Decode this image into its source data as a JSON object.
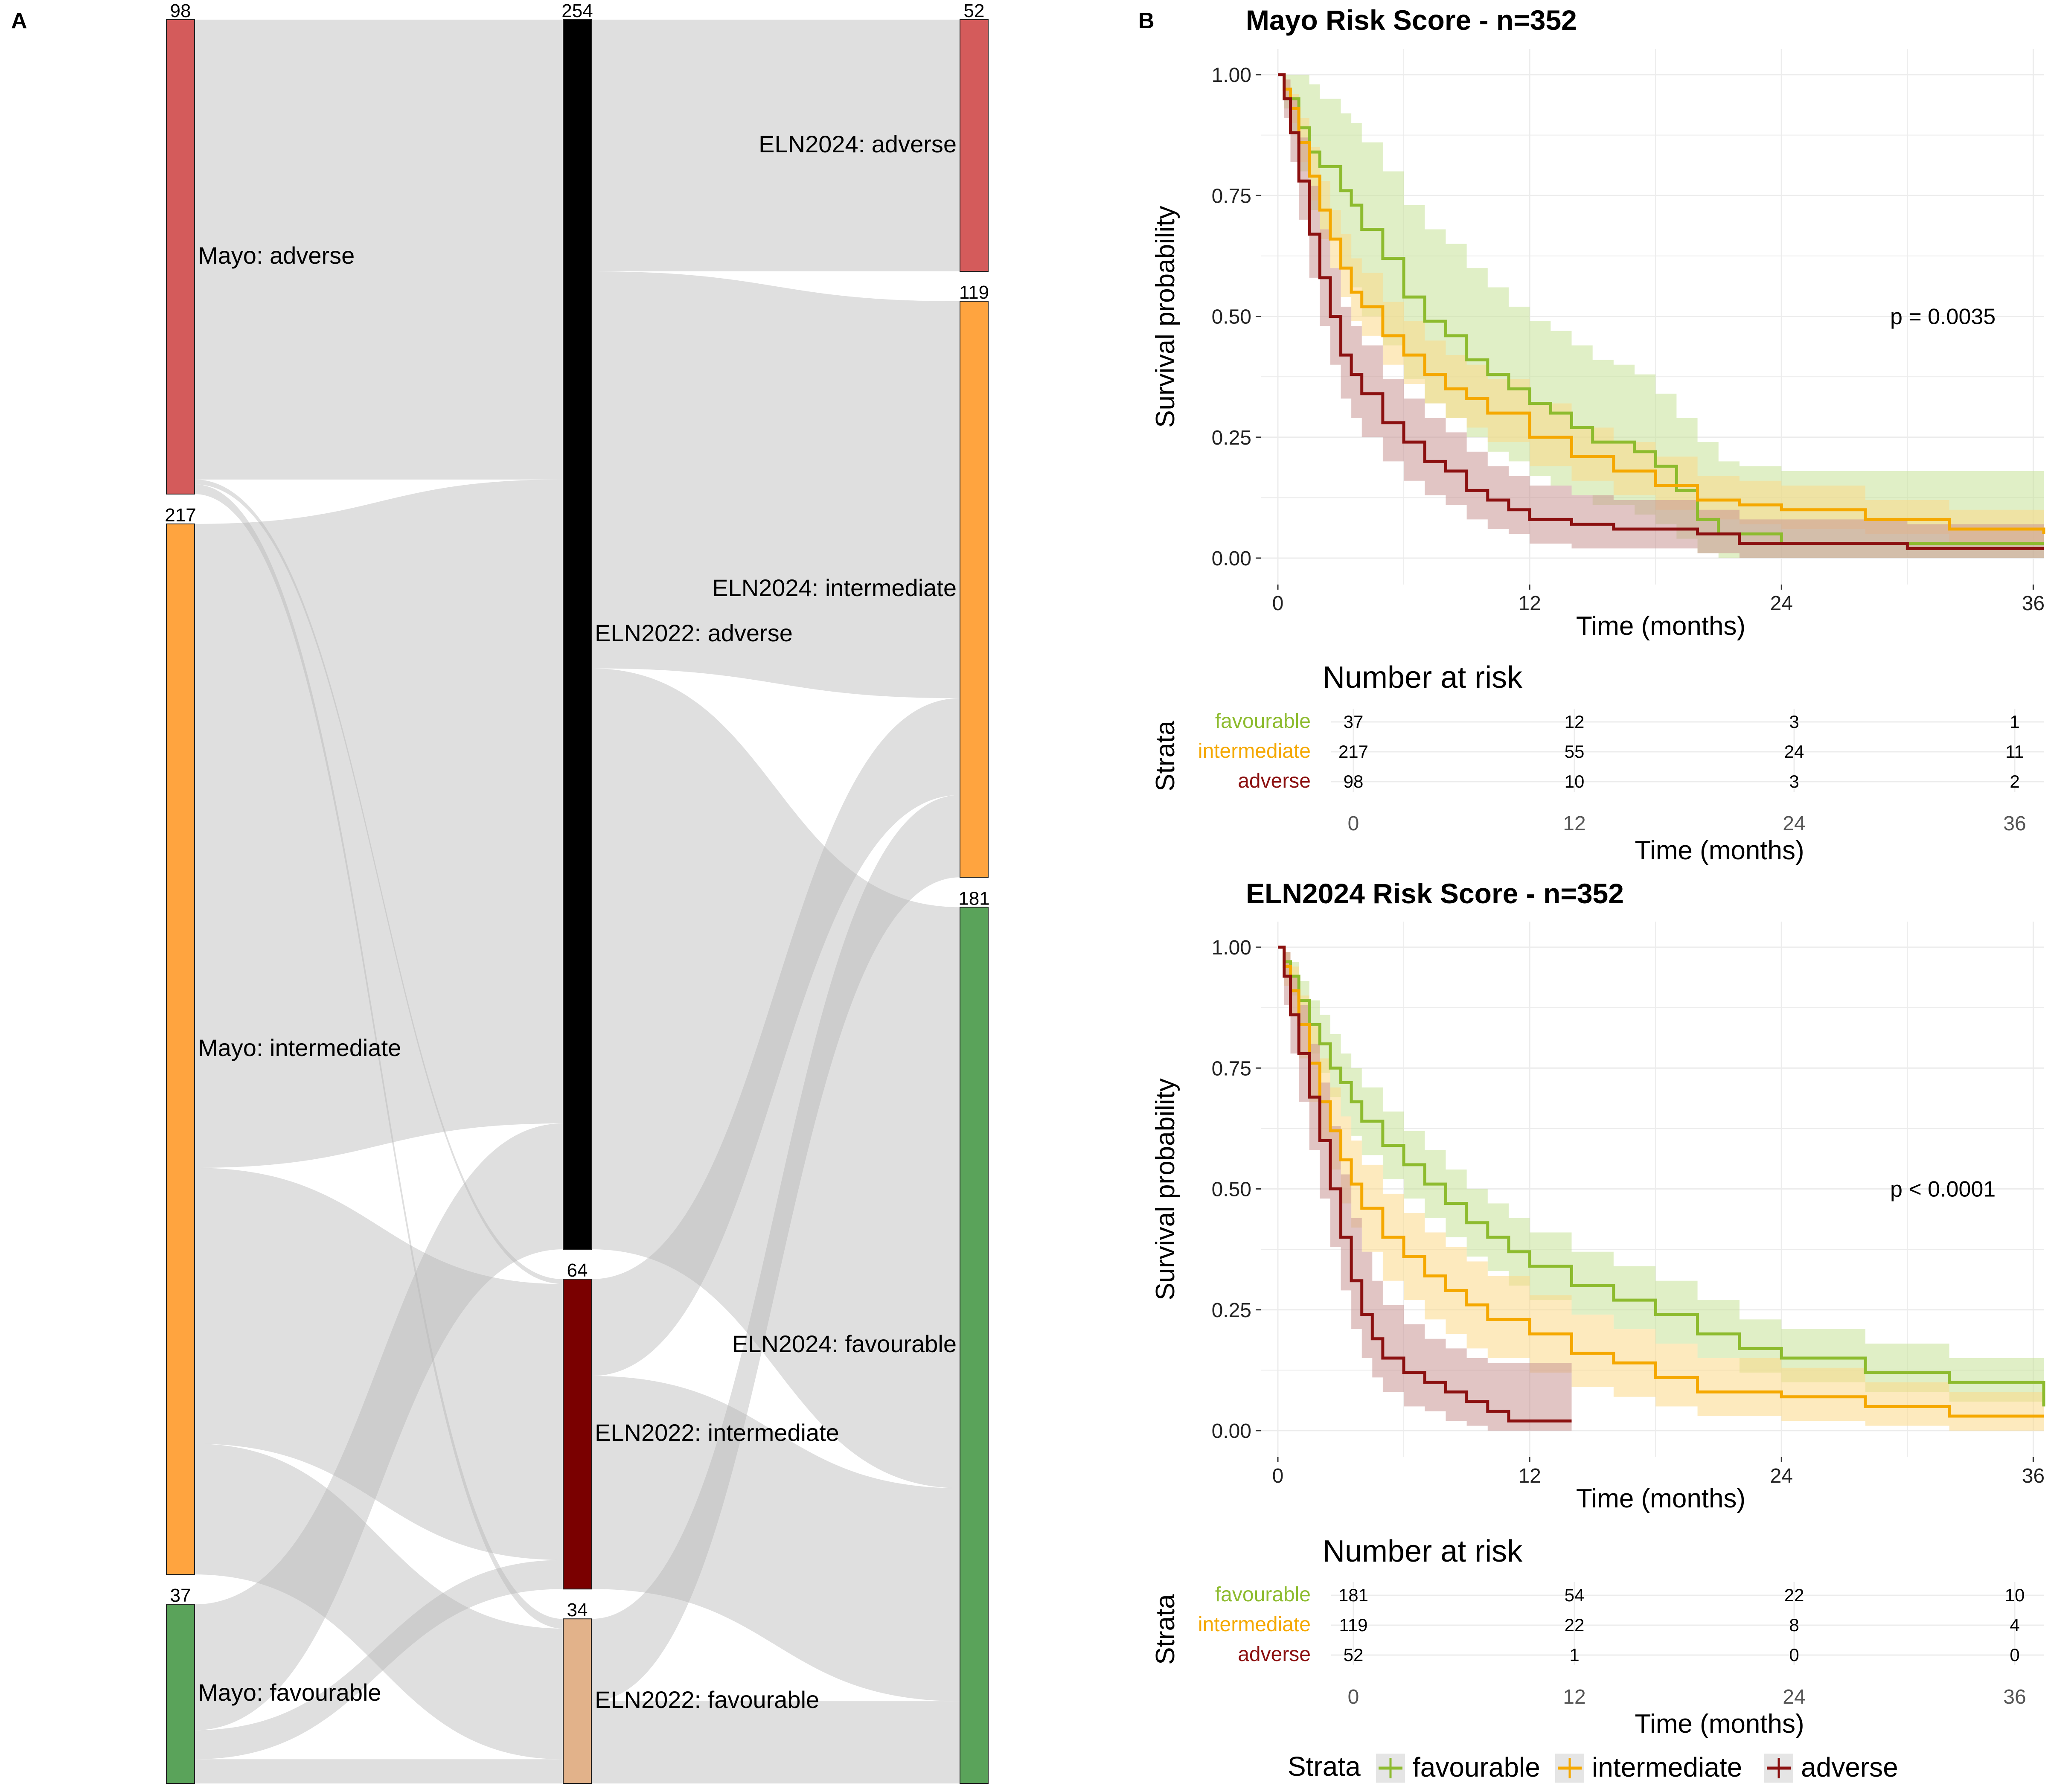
{
  "panels": {
    "a_label": "A",
    "b_label": "B"
  },
  "chart_data": [
    {
      "type": "sankey",
      "stages": [
        {
          "nodes": [
            {
              "label": "Mayo: adverse",
              "count": "98",
              "value": 98,
              "color": "#d45b5b"
            },
            {
              "label": "Mayo: intermediate",
              "count": "217",
              "value": 217,
              "color": "#ffa43f"
            },
            {
              "label": "Mayo: favourable",
              "count": "37",
              "value": 37,
              "color": "#5aa35a"
            }
          ]
        },
        {
          "nodes": [
            {
              "label": "ELN2022: adverse",
              "count": "254",
              "value": 254,
              "color": "#000000"
            },
            {
              "label": "ELN2022: intermediate",
              "count": "64",
              "value": 64,
              "color": "#7a0000"
            },
            {
              "label": "ELN2022: favourable",
              "count": "34",
              "value": 34,
              "color": "#e2b28a"
            }
          ]
        },
        {
          "nodes": [
            {
              "label": "ELN2024: adverse",
              "count": "52",
              "value": 52,
              "color": "#d45b5b"
            },
            {
              "label": "ELN2024: intermediate",
              "count": "119",
              "value": 119,
              "color": "#ffa43f"
            },
            {
              "label": "ELN2024: favourable",
              "count": "181",
              "value": 181,
              "color": "#5aa35a"
            }
          ]
        }
      ],
      "links1": [
        [
          0,
          0,
          95
        ],
        [
          0,
          1,
          1
        ],
        [
          0,
          2,
          2
        ],
        [
          1,
          0,
          133
        ],
        [
          1,
          1,
          57
        ],
        [
          1,
          2,
          27
        ],
        [
          2,
          0,
          26
        ],
        [
          2,
          1,
          6
        ],
        [
          2,
          2,
          5
        ]
      ],
      "links2": [
        [
          0,
          0,
          52
        ],
        [
          0,
          1,
          82
        ],
        [
          0,
          2,
          120
        ],
        [
          1,
          1,
          20
        ],
        [
          1,
          2,
          44
        ],
        [
          2,
          1,
          17
        ],
        [
          2,
          2,
          17
        ]
      ]
    },
    {
      "type": "line",
      "title": "Mayo Risk Score - n=352",
      "xlabel": "Time (months)",
      "ylabel": "Survival probability",
      "xlim": [
        0,
        36.5
      ],
      "ylim": [
        0,
        1
      ],
      "xticks": [
        "0",
        "12",
        "24",
        "36"
      ],
      "yticks": [
        "0.00",
        "0.25",
        "0.50",
        "0.75",
        "1.00"
      ],
      "pvalue": "p = 0.0035",
      "series": [
        {
          "name": "favourable",
          "color": "#8dbb2e",
          "band": "#c6e297",
          "x": [
            0,
            0.3,
            0.6,
            1,
            1.5,
            2,
            2.5,
            3,
            3.5,
            4,
            5,
            6,
            7,
            8,
            9,
            10,
            11,
            12,
            13,
            14,
            15,
            16,
            17,
            18,
            19,
            20,
            21,
            22,
            24,
            30,
            36.5
          ],
          "y": [
            1.0,
            0.97,
            0.95,
            0.89,
            0.84,
            0.81,
            0.81,
            0.76,
            0.73,
            0.68,
            0.62,
            0.54,
            0.49,
            0.46,
            0.41,
            0.38,
            0.35,
            0.32,
            0.3,
            0.27,
            0.24,
            0.24,
            0.22,
            0.19,
            0.14,
            0.08,
            0.05,
            0.05,
            0.03,
            0.03,
            0.03
          ],
          "lower": [
            1.0,
            0.93,
            0.88,
            0.8,
            0.72,
            0.68,
            0.66,
            0.6,
            0.56,
            0.5,
            0.44,
            0.37,
            0.32,
            0.29,
            0.25,
            0.22,
            0.2,
            0.17,
            0.15,
            0.13,
            0.11,
            0.11,
            0.09,
            0.07,
            0.04,
            0.01,
            0.0,
            0.0,
            0.0,
            0.0,
            0.0
          ],
          "upper": [
            1.0,
            1.0,
            1.0,
            1.0,
            0.98,
            0.95,
            0.95,
            0.92,
            0.9,
            0.86,
            0.8,
            0.73,
            0.68,
            0.65,
            0.6,
            0.56,
            0.52,
            0.49,
            0.47,
            0.44,
            0.41,
            0.4,
            0.38,
            0.34,
            0.29,
            0.24,
            0.2,
            0.19,
            0.18,
            0.18,
            0.18
          ]
        },
        {
          "name": "intermediate",
          "color": "#f5a800",
          "band": "#fcd989",
          "x": [
            0,
            0.3,
            0.6,
            1,
            1.5,
            2,
            2.5,
            3,
            3.5,
            4,
            5,
            6,
            7,
            8,
            9,
            10,
            12,
            14,
            16,
            18,
            20,
            22,
            24,
            28,
            32,
            36.5
          ],
          "y": [
            1.0,
            0.97,
            0.93,
            0.86,
            0.79,
            0.72,
            0.66,
            0.6,
            0.55,
            0.52,
            0.46,
            0.42,
            0.38,
            0.35,
            0.33,
            0.3,
            0.25,
            0.21,
            0.18,
            0.15,
            0.12,
            0.11,
            0.1,
            0.08,
            0.06,
            0.05
          ],
          "lower": [
            1.0,
            0.95,
            0.9,
            0.82,
            0.74,
            0.66,
            0.6,
            0.54,
            0.49,
            0.46,
            0.4,
            0.36,
            0.32,
            0.29,
            0.27,
            0.24,
            0.19,
            0.16,
            0.13,
            0.1,
            0.08,
            0.07,
            0.06,
            0.05,
            0.03,
            0.02
          ],
          "upper": [
            1.0,
            0.99,
            0.96,
            0.91,
            0.85,
            0.78,
            0.72,
            0.67,
            0.62,
            0.59,
            0.53,
            0.49,
            0.45,
            0.42,
            0.4,
            0.37,
            0.32,
            0.27,
            0.24,
            0.21,
            0.17,
            0.16,
            0.15,
            0.12,
            0.1,
            0.08
          ]
        },
        {
          "name": "adverse",
          "color": "#8b1010",
          "band": "#c99594",
          "x": [
            0,
            0.3,
            0.6,
            1,
            1.5,
            2,
            2.5,
            3,
            3.5,
            4,
            5,
            6,
            7,
            8,
            9,
            10,
            11,
            12,
            13,
            14,
            16,
            18,
            20,
            22,
            24,
            30,
            36.5
          ],
          "y": [
            1.0,
            0.95,
            0.88,
            0.78,
            0.67,
            0.58,
            0.5,
            0.42,
            0.38,
            0.34,
            0.28,
            0.24,
            0.2,
            0.18,
            0.14,
            0.12,
            0.1,
            0.08,
            0.08,
            0.07,
            0.06,
            0.06,
            0.05,
            0.03,
            0.03,
            0.02,
            0.02
          ],
          "lower": [
            1.0,
            0.91,
            0.82,
            0.7,
            0.58,
            0.48,
            0.4,
            0.33,
            0.29,
            0.25,
            0.2,
            0.16,
            0.13,
            0.11,
            0.08,
            0.06,
            0.05,
            0.03,
            0.03,
            0.02,
            0.02,
            0.02,
            0.01,
            0.0,
            0.0,
            0.0,
            0.0
          ],
          "upper": [
            1.0,
            0.99,
            0.95,
            0.87,
            0.77,
            0.68,
            0.6,
            0.52,
            0.48,
            0.44,
            0.37,
            0.33,
            0.29,
            0.26,
            0.22,
            0.19,
            0.17,
            0.15,
            0.15,
            0.13,
            0.12,
            0.12,
            0.1,
            0.08,
            0.08,
            0.07,
            0.07
          ]
        }
      ],
      "risk_table": {
        "title": "Number at risk",
        "ylabel": "Strata",
        "xlabel": "Time (months)",
        "times": [
          "0",
          "12",
          "24",
          "36"
        ],
        "rows": [
          {
            "name": "favourable",
            "color": "#8dbb2e",
            "values": [
              "37",
              "12",
              "3",
              "1"
            ]
          },
          {
            "name": "intermediate",
            "color": "#f5a800",
            "values": [
              "217",
              "55",
              "24",
              "11"
            ]
          },
          {
            "name": "adverse",
            "color": "#8b1010",
            "values": [
              "98",
              "10",
              "3",
              "2"
            ]
          }
        ]
      }
    },
    {
      "type": "line",
      "title": "ELN2024 Risk Score - n=352",
      "xlabel": "Time (months)",
      "ylabel": "Survival probability",
      "xlim": [
        0,
        36.5
      ],
      "ylim": [
        0,
        1
      ],
      "xticks": [
        "0",
        "12",
        "24",
        "36"
      ],
      "yticks": [
        "0.00",
        "0.25",
        "0.50",
        "0.75",
        "1.00"
      ],
      "pvalue": "p < 0.0001",
      "series": [
        {
          "name": "favourable",
          "color": "#8dbb2e",
          "band": "#c6e297",
          "x": [
            0,
            0.3,
            0.6,
            1,
            1.5,
            2,
            2.5,
            3,
            3.5,
            4,
            5,
            6,
            7,
            8,
            9,
            10,
            11,
            12,
            14,
            16,
            18,
            20,
            22,
            24,
            28,
            32,
            36.5
          ],
          "y": [
            1.0,
            0.97,
            0.94,
            0.89,
            0.84,
            0.8,
            0.75,
            0.72,
            0.68,
            0.64,
            0.59,
            0.55,
            0.51,
            0.47,
            0.43,
            0.4,
            0.37,
            0.34,
            0.3,
            0.27,
            0.24,
            0.2,
            0.17,
            0.15,
            0.12,
            0.1,
            0.05
          ],
          "lower": [
            1.0,
            0.94,
            0.9,
            0.84,
            0.78,
            0.74,
            0.69,
            0.65,
            0.61,
            0.57,
            0.52,
            0.48,
            0.44,
            0.4,
            0.36,
            0.33,
            0.3,
            0.27,
            0.24,
            0.21,
            0.18,
            0.15,
            0.12,
            0.1,
            0.08,
            0.06,
            0.02
          ],
          "upper": [
            1.0,
            0.99,
            0.97,
            0.93,
            0.89,
            0.86,
            0.82,
            0.78,
            0.75,
            0.71,
            0.66,
            0.62,
            0.58,
            0.54,
            0.5,
            0.47,
            0.44,
            0.41,
            0.37,
            0.34,
            0.31,
            0.27,
            0.23,
            0.21,
            0.18,
            0.15,
            0.1
          ]
        },
        {
          "name": "intermediate",
          "color": "#f5a800",
          "band": "#fcd989",
          "x": [
            0,
            0.3,
            0.6,
            1,
            1.5,
            2,
            2.5,
            3,
            3.5,
            4,
            5,
            6,
            7,
            8,
            9,
            10,
            12,
            14,
            16,
            18,
            20,
            24,
            28,
            32,
            36.5
          ],
          "y": [
            1.0,
            0.96,
            0.91,
            0.84,
            0.76,
            0.68,
            0.62,
            0.56,
            0.51,
            0.46,
            0.4,
            0.36,
            0.32,
            0.29,
            0.26,
            0.23,
            0.2,
            0.16,
            0.14,
            0.11,
            0.08,
            0.07,
            0.05,
            0.03,
            0.03
          ],
          "lower": [
            1.0,
            0.92,
            0.86,
            0.77,
            0.68,
            0.6,
            0.54,
            0.47,
            0.42,
            0.37,
            0.31,
            0.27,
            0.23,
            0.2,
            0.17,
            0.15,
            0.12,
            0.09,
            0.07,
            0.05,
            0.03,
            0.02,
            0.01,
            0.0,
            0.0
          ],
          "upper": [
            1.0,
            0.99,
            0.96,
            0.9,
            0.84,
            0.77,
            0.71,
            0.65,
            0.6,
            0.55,
            0.49,
            0.45,
            0.41,
            0.38,
            0.35,
            0.32,
            0.28,
            0.24,
            0.21,
            0.18,
            0.15,
            0.13,
            0.1,
            0.08,
            0.08
          ]
        },
        {
          "name": "adverse",
          "color": "#8b1010",
          "band": "#c99594",
          "x": [
            0,
            0.3,
            0.6,
            1,
            1.5,
            2,
            2.5,
            3,
            3.5,
            4,
            4.5,
            5,
            6,
            7,
            8,
            9,
            10,
            11,
            12,
            13,
            14
          ],
          "y": [
            1.0,
            0.94,
            0.86,
            0.78,
            0.69,
            0.6,
            0.5,
            0.4,
            0.31,
            0.24,
            0.19,
            0.15,
            0.12,
            0.1,
            0.08,
            0.06,
            0.04,
            0.02,
            0.02,
            0.02,
            0.02
          ],
          "lower": [
            1.0,
            0.88,
            0.78,
            0.68,
            0.58,
            0.48,
            0.38,
            0.29,
            0.21,
            0.15,
            0.11,
            0.08,
            0.05,
            0.04,
            0.02,
            0.01,
            0.0,
            0.0,
            0.0,
            0.0,
            0.0
          ],
          "upper": [
            1.0,
            0.99,
            0.94,
            0.88,
            0.8,
            0.72,
            0.63,
            0.53,
            0.44,
            0.37,
            0.31,
            0.26,
            0.22,
            0.19,
            0.17,
            0.15,
            0.14,
            0.14,
            0.14,
            0.14,
            0.14
          ]
        }
      ],
      "risk_table": {
        "title": "Number at risk",
        "ylabel": "Strata",
        "xlabel": "Time (months)",
        "times": [
          "0",
          "12",
          "24",
          "36"
        ],
        "rows": [
          {
            "name": "favourable",
            "color": "#8dbb2e",
            "values": [
              "181",
              "54",
              "22",
              "10"
            ]
          },
          {
            "name": "intermediate",
            "color": "#f5a800",
            "values": [
              "119",
              "22",
              "8",
              "4"
            ]
          },
          {
            "name": "adverse",
            "color": "#8b1010",
            "values": [
              "52",
              "1",
              "0",
              "0"
            ]
          }
        ]
      }
    }
  ],
  "legend": {
    "title": "Strata",
    "items": [
      {
        "name": "favourable",
        "color": "#8dbb2e"
      },
      {
        "name": "intermediate",
        "color": "#f5a800"
      },
      {
        "name": "adverse",
        "color": "#8b1010"
      }
    ]
  }
}
